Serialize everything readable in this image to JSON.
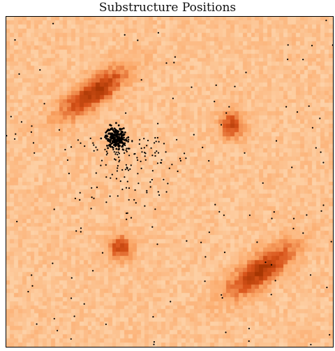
{
  "chart_data": {
    "type": "heatmap",
    "title": "Substructure Positions",
    "xlabel": "",
    "ylabel": "",
    "xlim": [
      0,
      1
    ],
    "ylim": [
      0,
      1
    ],
    "grid": false,
    "colormap": [
      "#fff3e8",
      "#fdd0a5",
      "#fba767",
      "#d9541a",
      "#a63603"
    ],
    "background_level": 0.33,
    "noise_amplitude": 0.09,
    "substructures": [
      {
        "x": 0.27,
        "y": 0.77,
        "sx": 0.085,
        "sy": 0.028,
        "angle_deg": 35,
        "peak": 0.62
      },
      {
        "x": 0.69,
        "y": 0.67,
        "sx": 0.026,
        "sy": 0.03,
        "angle_deg": 0,
        "peak": 0.48
      },
      {
        "x": 0.35,
        "y": 0.3,
        "sx": 0.026,
        "sy": 0.026,
        "angle_deg": 0,
        "peak": 0.5
      },
      {
        "x": 0.78,
        "y": 0.23,
        "sx": 0.085,
        "sy": 0.03,
        "angle_deg": 35,
        "peak": 0.62
      }
    ],
    "point_cluster": {
      "x": 0.335,
      "y": 0.635,
      "core_count": 220,
      "core_sigma": 0.015,
      "halo_count": 140,
      "halo_sigma": 0.09,
      "color": "#000000"
    },
    "scattered_points": {
      "count": 130,
      "color": "#000000"
    }
  }
}
